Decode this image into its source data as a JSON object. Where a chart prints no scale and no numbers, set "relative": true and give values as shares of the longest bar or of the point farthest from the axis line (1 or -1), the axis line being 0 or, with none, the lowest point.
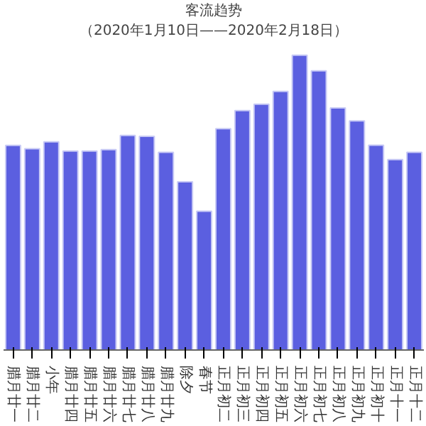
{
  "chart_data": {
    "type": "bar",
    "title": "客流趋势",
    "subtitle": "（2020年1月10日——2020年2月18日）",
    "categories": [
      "腊月廿一",
      "腊月廿二",
      "小年",
      "腊月廿四",
      "腊月廿五",
      "腊月廿六",
      "腊月廿七",
      "腊月廿八",
      "腊月廿九",
      "除夕",
      "春节",
      "正月初二",
      "正月初三",
      "正月初四",
      "正月初五",
      "正月初六",
      "正月初七",
      "正月初八",
      "正月初九",
      "正月初十",
      "正月十一",
      "正月十二"
    ],
    "values": [
      0.694,
      0.683,
      0.706,
      0.675,
      0.675,
      0.68,
      0.728,
      0.725,
      0.671,
      0.571,
      0.471,
      0.751,
      0.812,
      0.834,
      0.877,
      1,
      0.947,
      0.821,
      0.777,
      0.695,
      0.646,
      0.671
    ],
    "color": "#5b5fe0",
    "relative": true,
    "grid": false
  }
}
